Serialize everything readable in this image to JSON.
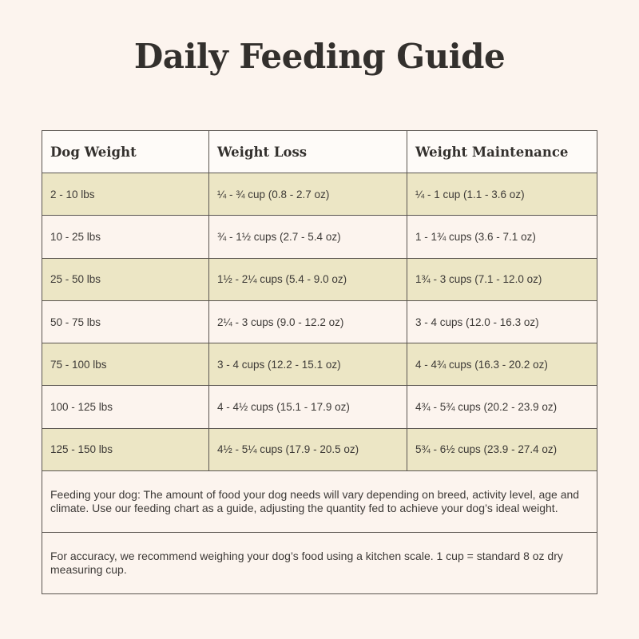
{
  "title": "Daily Feeding Guide",
  "table": {
    "headers": [
      "Dog Weight",
      "Weight Loss",
      "Weight Maintenance"
    ],
    "rows": [
      [
        "2 - 10 lbs",
        "¼ - ¾ cup (0.8 - 2.7 oz)",
        "¼ - 1 cup (1.1 - 3.6 oz)"
      ],
      [
        "10 - 25 lbs",
        "¾ - 1½ cups (2.7 - 5.4 oz)",
        "1 - 1¾ cups (3.6 - 7.1 oz)"
      ],
      [
        "25 - 50 lbs",
        "1½ - 2¼ cups (5.4 - 9.0 oz)",
        "1¾ - 3 cups (7.1 - 12.0 oz)"
      ],
      [
        "50 - 75 lbs",
        "2¼ - 3 cups (9.0 - 12.2 oz)",
        "3 - 4 cups (12.0 - 16.3 oz)"
      ],
      [
        "75 - 100 lbs",
        "3 - 4 cups (12.2 - 15.1 oz)",
        "4 - 4¾ cups (16.3 - 20.2 oz)"
      ],
      [
        "100 - 125 lbs",
        "4 - 4½ cups (15.1 - 17.9 oz)",
        "4¾ - 5¾ cups (20.2 - 23.9 oz)"
      ],
      [
        "125 - 150 lbs",
        "4½ - 5¼ cups (17.9 - 20.5 oz)",
        "5¾ - 6½ cups (23.9 - 27.4 oz)"
      ]
    ]
  },
  "notes": {
    "feeding": "Feeding your dog: The amount of food your dog needs will vary depending on breed, activity level, age and climate. Use our feeding chart as a guide, adjusting the quantity fed to achieve your dog’s ideal weight.",
    "accuracy": "For accuracy, we recommend weighing your dog’s food using a kitchen scale. 1 cup = standard 8 oz dry measuring cup."
  },
  "colors": {
    "background": "#fcf4ee",
    "shaded_row": "#ece6c5",
    "border": "#5a5550",
    "text": "#3d3a37"
  }
}
